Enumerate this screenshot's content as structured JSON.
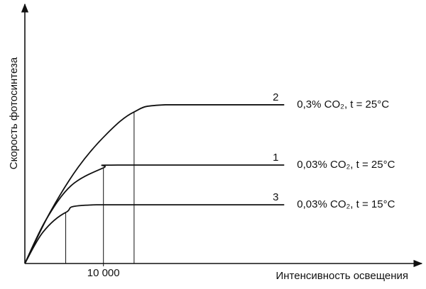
{
  "chart_data": {
    "type": "line",
    "x_label": "Интенсивность освещения",
    "y_label": "Скорость фотосинтеза",
    "xlim": [
      0,
      50500
    ],
    "ylim": [
      0,
      100
    ],
    "xticks": [
      {
        "value": 10000,
        "label": "10 000"
      }
    ],
    "series": [
      {
        "name": "0,3% CO₂, t = 25°C",
        "label": "2",
        "color": "#111111",
        "x": [
          0,
          3200,
          6800,
          10500,
          13900,
          17900,
          33000
        ],
        "values": [
          0,
          19.9,
          37.6,
          50.8,
          59.1,
          61.9,
          61.9
        ]
      },
      {
        "name": "0,03% CO₂, t = 25°C",
        "label": "1",
        "color": "#111111",
        "x": [
          0,
          2700,
          5900,
          10000,
          11800,
          33000
        ],
        "values": [
          0,
          17.1,
          30.4,
          37.3,
          38.4,
          38.4
        ]
      },
      {
        "name": "0,03% CO₂, t = 15°C",
        "label": "3",
        "color": "#111111",
        "x": [
          0,
          2300,
          5200,
          9100,
          33000
        ],
        "values": [
          0,
          12.2,
          19.9,
          22.9,
          22.9
        ]
      }
    ]
  }
}
